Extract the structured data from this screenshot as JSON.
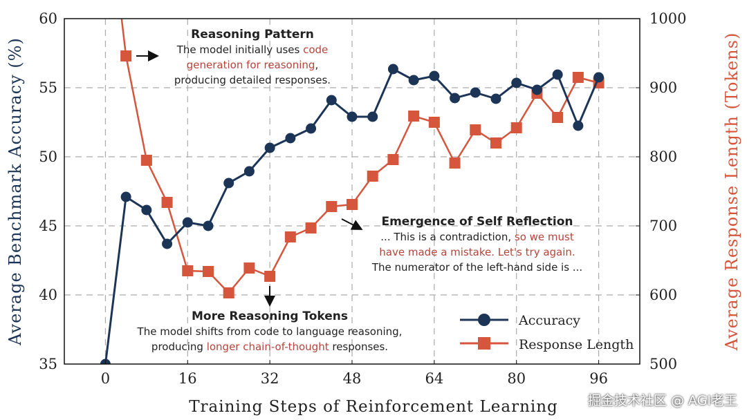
{
  "chart_data": {
    "type": "line",
    "xlabel": "Training Steps of Reinforcement Learning",
    "ylabel_left": "Average Benchmark Accuracy (%)",
    "ylabel_right": "Average Response Length (Tokens)",
    "x_ticks": [
      0,
      16,
      32,
      48,
      64,
      80,
      96
    ],
    "y_left_ticks": [
      35,
      40,
      45,
      50,
      55,
      60
    ],
    "y_right_ticks": [
      500,
      600,
      700,
      800,
      900,
      1000
    ],
    "xlim": [
      -8,
      104
    ],
    "ylim_left": [
      35,
      60
    ],
    "ylim_right": [
      500,
      1000
    ],
    "grid": true,
    "legend_position": "bottom-right",
    "x": [
      0,
      4,
      8,
      12,
      16,
      20,
      24,
      28,
      32,
      36,
      40,
      44,
      48,
      52,
      56,
      60,
      64,
      68,
      72,
      76,
      80,
      84,
      88,
      92,
      96
    ],
    "series": [
      {
        "name": "Accuracy",
        "axis": "left",
        "marker": "circle",
        "color": "#1c3557",
        "values": [
          35,
          47.1,
          46.15,
          43.7,
          45.25,
          45.0,
          48.1,
          48.95,
          50.65,
          51.35,
          52.05,
          54.1,
          52.9,
          52.9,
          56.35,
          55.55,
          55.85,
          54.25,
          54.65,
          54.2,
          55.35,
          54.85,
          55.95,
          52.25,
          55.75
        ]
      },
      {
        "name": "Response Length",
        "axis": "right",
        "marker": "square",
        "color": "#d5553d",
        "values": [
          1200,
          946,
          795,
          734,
          635,
          634,
          603,
          639,
          627,
          684,
          697,
          728,
          731,
          772,
          796,
          859,
          850,
          791,
          839,
          820,
          842,
          892,
          857,
          915,
          907
        ]
      }
    ],
    "annotations": [
      {
        "title": "Reasoning Pattern",
        "lines": [
          [
            "The model initially uses ",
            "code"
          ],
          [
            "",
            "generation for reasoning",
            ","
          ],
          [
            "producing detailed responses."
          ]
        ]
      },
      {
        "title": "Emergence of Self Reflection",
        "l1a": "... This is a contradiction, ",
        "l1b": "so we must",
        "l2": "have made a mistake. Let's try again.",
        "l3": "The numerator of the left-hand side is ..."
      },
      {
        "title": "More Reasoning Tokens",
        "l1": "The model shifts from code to language reasoning,",
        "l2a": "producing ",
        "l2b": "longer chain-of-thought",
        "l2c": " responses."
      }
    ]
  },
  "watermark": "掘金技术社区 @ AGI老王"
}
